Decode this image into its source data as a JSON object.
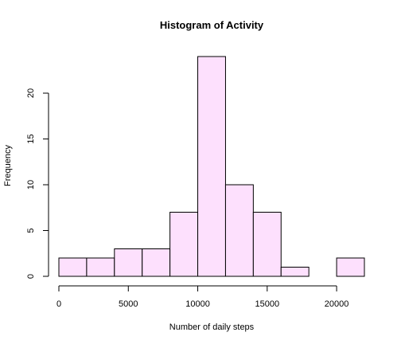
{
  "chart_data": {
    "type": "bar",
    "title": "Histogram of Activity",
    "xlabel": "Number of daily steps",
    "ylabel": "Frequency",
    "bin_width": 2000,
    "bins": [
      {
        "start": 0,
        "end": 2000,
        "count": 2
      },
      {
        "start": 2000,
        "end": 4000,
        "count": 2
      },
      {
        "start": 4000,
        "end": 6000,
        "count": 3
      },
      {
        "start": 6000,
        "end": 8000,
        "count": 3
      },
      {
        "start": 8000,
        "end": 10000,
        "count": 7
      },
      {
        "start": 10000,
        "end": 12000,
        "count": 24
      },
      {
        "start": 12000,
        "end": 14000,
        "count": 10
      },
      {
        "start": 14000,
        "end": 16000,
        "count": 7
      },
      {
        "start": 16000,
        "end": 18000,
        "count": 1
      },
      {
        "start": 18000,
        "end": 20000,
        "count": 0
      },
      {
        "start": 20000,
        "end": 22000,
        "count": 2
      }
    ],
    "xlim": [
      0,
      22000
    ],
    "ylim": [
      0,
      24
    ],
    "x_ticks": [
      0,
      5000,
      10000,
      15000,
      20000
    ],
    "y_ticks": [
      0,
      5,
      10,
      15,
      20
    ],
    "bar_fill": "#fde0fd",
    "bar_stroke": "#000000",
    "grid": false,
    "legend": "none"
  }
}
